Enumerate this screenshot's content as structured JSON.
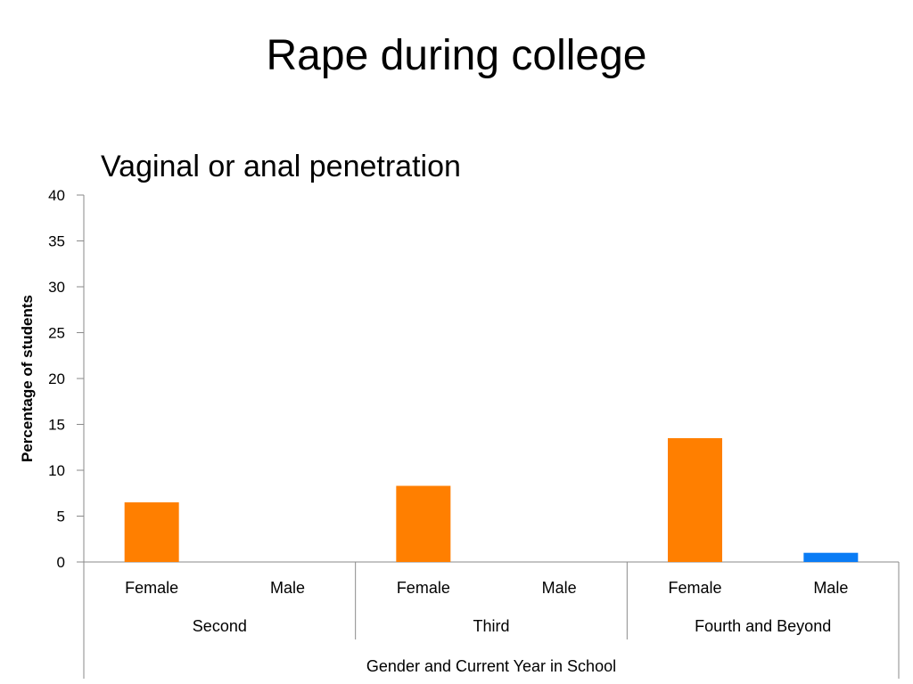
{
  "slide": {
    "title": "Rape during college"
  },
  "chart_data": {
    "type": "bar",
    "title": "Vaginal or anal penetration",
    "ylabel": "Percentage of students",
    "xlabel": "Gender and Current Year in School",
    "ylim": [
      0,
      40
    ],
    "yticks": [
      0,
      5,
      10,
      15,
      20,
      25,
      30,
      35,
      40
    ],
    "grid": false,
    "legend": "none",
    "groups": [
      {
        "label": "Second",
        "categories": [
          "Female",
          "Male"
        ]
      },
      {
        "label": "Third",
        "categories": [
          "Female",
          "Male"
        ]
      },
      {
        "label": "Fourth and Beyond",
        "categories": [
          "Female",
          "Male"
        ]
      }
    ],
    "values": [
      6.5,
      null,
      8.3,
      null,
      13.5,
      1.0
    ],
    "colors": {
      "Female": "#ff7f00",
      "Male": "#0a7cf5"
    }
  }
}
